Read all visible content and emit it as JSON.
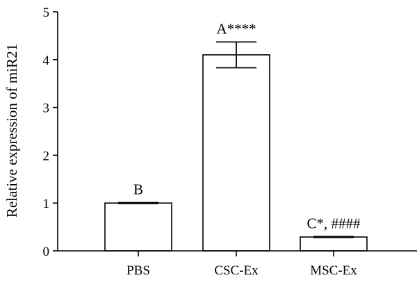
{
  "chart_data": {
    "type": "bar",
    "categories": [
      "PBS",
      "CSC-Ex",
      "MSC-Ex"
    ],
    "values": [
      1.0,
      4.1,
      0.29
    ],
    "error": [
      0.01,
      0.27,
      0.01
    ],
    "annotations": [
      "B",
      "A****",
      "C*, ####"
    ],
    "ylabel": "Relative expression of miR21",
    "xlabel": "",
    "ylim": [
      0,
      5
    ],
    "yticks": [
      0,
      1,
      2,
      3,
      4,
      5
    ],
    "grid": false
  }
}
